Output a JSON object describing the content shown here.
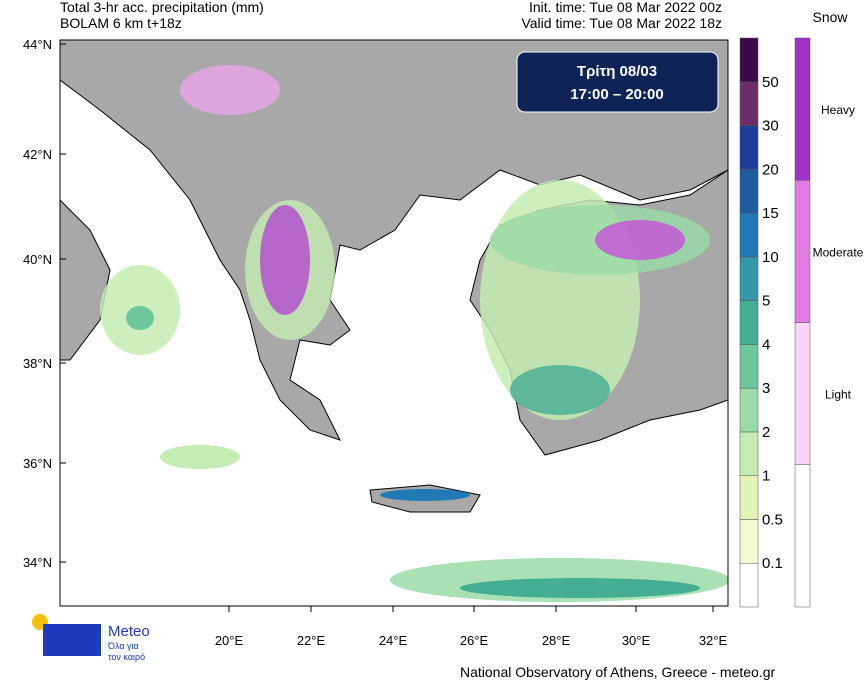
{
  "header": {
    "title": "Total 3-hr acc. precipitation (mm)",
    "model": "BOLAM 6 km t+18z",
    "init_time": "Init. time: Tue 08 Mar 2022 00z",
    "valid_time": "Valid time: Tue 08 Mar 2022 18z"
  },
  "info_box": {
    "day": "Τρίτη 08/03",
    "hours": "17:00 – 20:00"
  },
  "map": {
    "lat_labels": [
      "44°N",
      "42°N",
      "40°N",
      "38°N",
      "36°N",
      "34°N"
    ],
    "lon_labels": [
      "20°E",
      "22°E",
      "24°E",
      "26°E",
      "28°E",
      "30°E",
      "32°E"
    ]
  },
  "precip_legend": {
    "labels": [
      "0.1",
      "0.5",
      "1",
      "2",
      "3",
      "4",
      "5",
      "10",
      "15",
      "20",
      "30",
      "50"
    ],
    "colors": [
      "#ffffff",
      "#f3fad2",
      "#e2f4b4",
      "#c4ecb2",
      "#9adca8",
      "#6ec69c",
      "#44ad92",
      "#3597ab",
      "#2179b5",
      "#1d5c9f",
      "#1e3c9a",
      "#6d2d66",
      "#3a0b48"
    ]
  },
  "snow_legend": {
    "title": "Snow",
    "labels": [
      "Light",
      "Moderate",
      "Heavy"
    ],
    "colors": [
      "#ffffff",
      "#f8d3f5",
      "#e07de0",
      "#9c32c9"
    ]
  },
  "logo": {
    "name": "Meteo",
    "tagline_1": "Όλα για",
    "tagline_2": "τον καιρό"
  },
  "footer": "National Observatory of Athens, Greece - meteo.gr"
}
